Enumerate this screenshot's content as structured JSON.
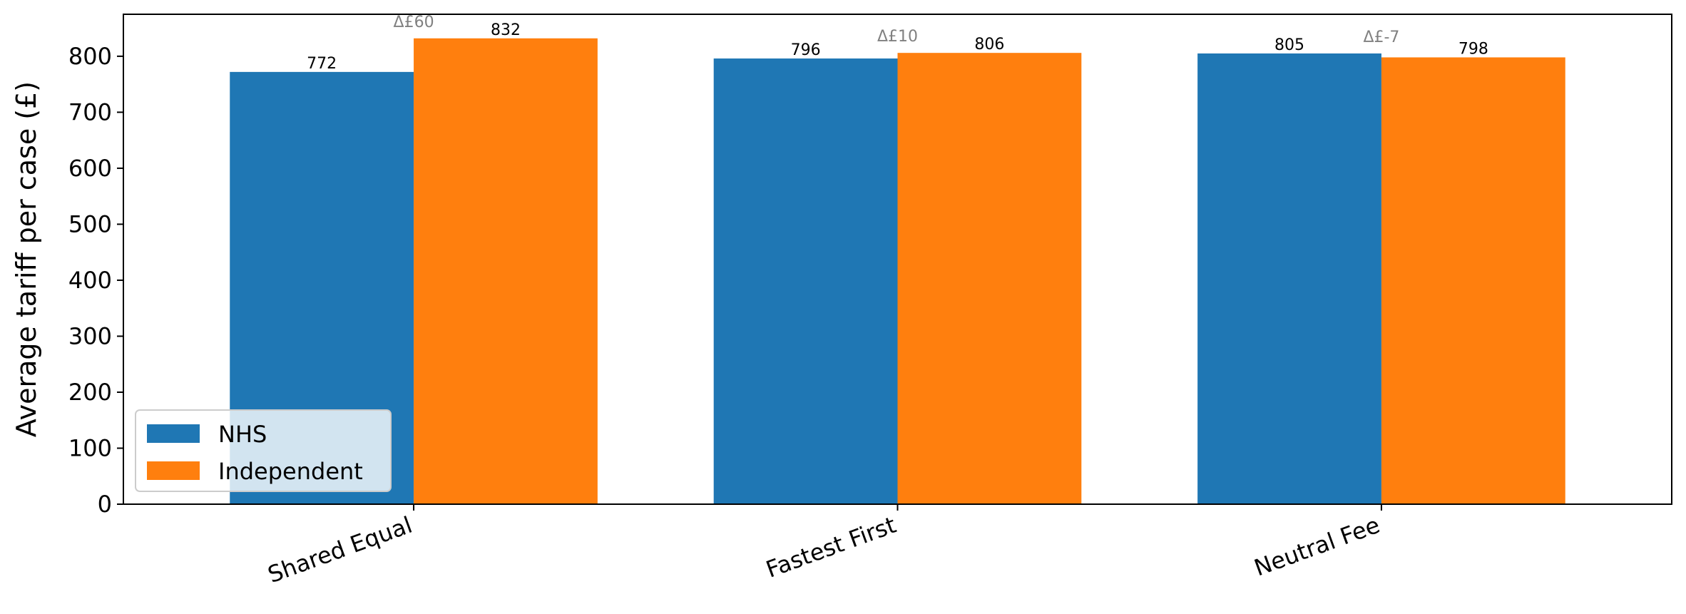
{
  "chart_data": {
    "type": "bar",
    "title": "",
    "xlabel": "",
    "ylabel": "Average tariff per case (£)",
    "categories": [
      "Shared Equal",
      "Fastest First",
      "Neutral Fee"
    ],
    "series": [
      {
        "name": "NHS",
        "values": [
          772,
          796,
          805
        ],
        "color": "#1f77b4"
      },
      {
        "name": "Independent",
        "values": [
          832,
          806,
          798
        ],
        "color": "#ff7f0e"
      }
    ],
    "deltas": [
      "Δ£60",
      "Δ£10",
      "Δ£-7"
    ],
    "ylim": [
      0,
      875
    ],
    "yticks": [
      0,
      100,
      200,
      300,
      400,
      500,
      600,
      700,
      800
    ],
    "grid": false,
    "legend_position": "lower-left"
  }
}
